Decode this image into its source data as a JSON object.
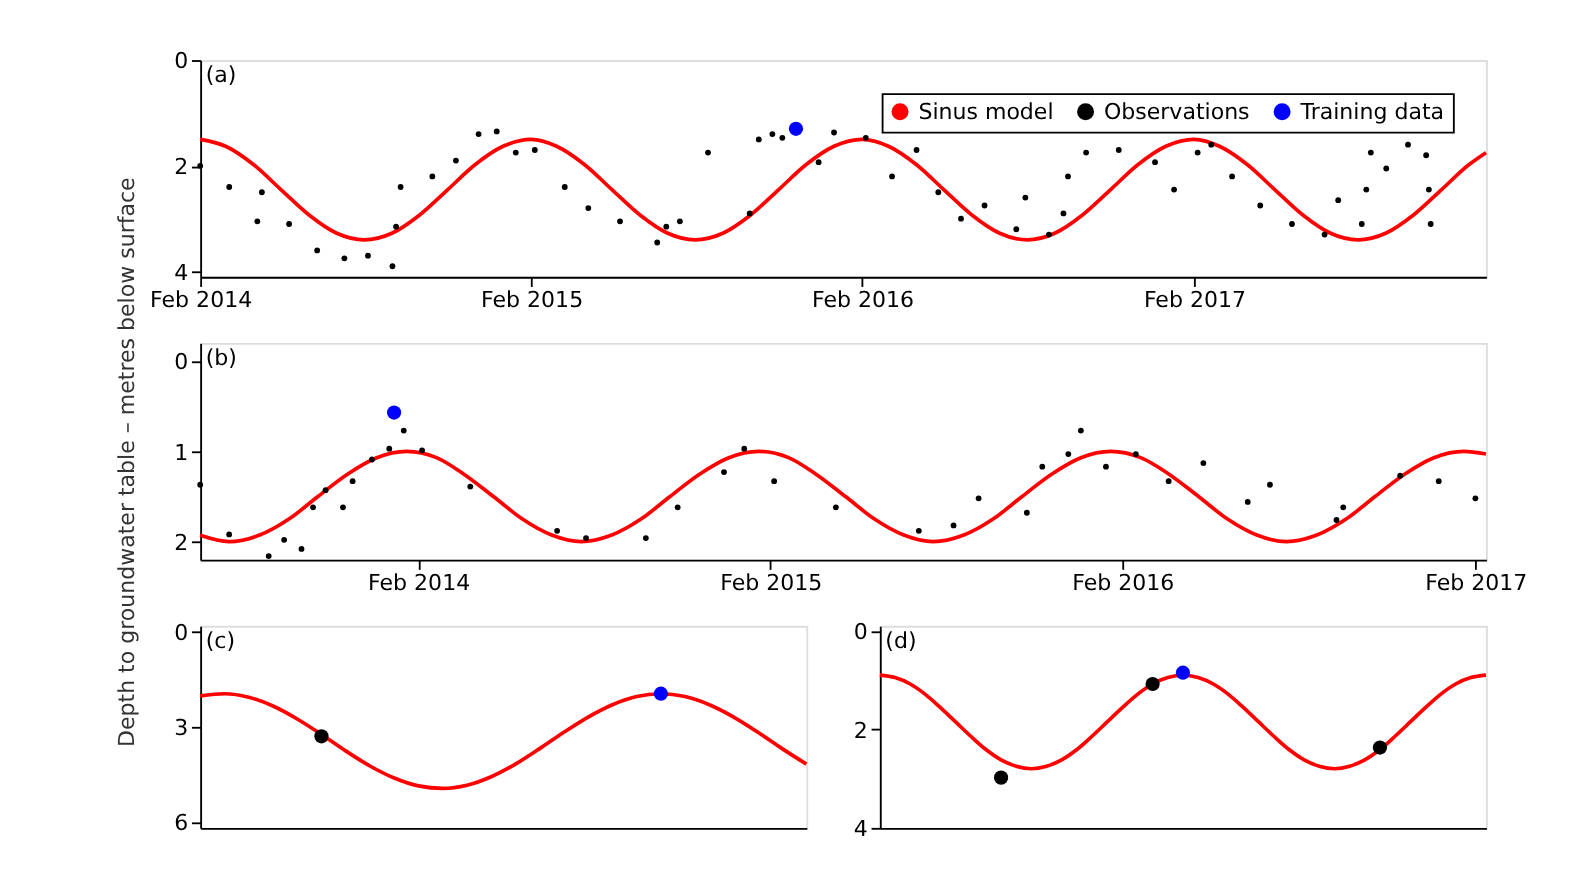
{
  "chart_data": [
    {
      "type": "line",
      "annotations": [
        "(a)"
      ],
      "legend": "top right",
      "line_style": "solid",
      "grid": false,
      "xlim": [
        "2014-02-01",
        "2017-12-20"
      ],
      "xticks": [
        {
          "value": "2014-02-01",
          "label": "Feb 2014"
        },
        {
          "value": "2015-02-01",
          "label": "Feb 2015"
        },
        {
          "value": "2016-02-01",
          "label": "Feb 2016"
        },
        {
          "value": "2017-02-01",
          "label": "Feb 2017"
        }
      ],
      "ylim": [
        4.1,
        0
      ],
      "yticks": [
        0,
        2,
        4
      ],
      "series": [
        {
          "name": "Sinus model",
          "type": "line",
          "color": "#ff0000",
          "x": [
            "2014-02-01",
            "2014-03-01",
            "2014-04-01",
            "2014-05-01",
            "2014-06-01",
            "2014-07-01",
            "2014-08-01",
            "2014-09-01",
            "2014-10-01",
            "2014-11-01",
            "2014-12-01",
            "2015-01-01",
            "2015-02-01",
            "2015-03-01",
            "2015-04-01",
            "2015-05-01",
            "2015-06-01",
            "2015-07-01",
            "2015-08-01",
            "2015-09-01",
            "2015-10-01",
            "2015-11-01",
            "2015-12-01",
            "2016-01-01",
            "2016-02-01",
            "2016-03-01",
            "2016-04-01",
            "2016-05-01",
            "2016-06-01",
            "2016-07-01",
            "2016-08-01",
            "2016-09-01",
            "2016-10-01",
            "2016-11-01",
            "2016-12-01",
            "2017-01-01",
            "2017-02-01",
            "2017-03-01",
            "2017-04-01",
            "2017-05-01",
            "2017-06-01",
            "2017-07-01",
            "2017-08-01",
            "2017-09-01",
            "2017-10-01",
            "2017-11-01",
            "2017-12-01",
            "2017-12-20"
          ],
          "values": [
            1.5,
            1.63,
            1.98,
            2.45,
            2.93,
            3.27,
            3.4,
            3.27,
            2.93,
            2.45,
            1.98,
            1.63,
            1.5,
            1.63,
            1.98,
            2.45,
            2.93,
            3.27,
            3.4,
            3.27,
            2.93,
            2.45,
            1.98,
            1.63,
            1.5,
            1.63,
            1.98,
            2.45,
            2.93,
            3.27,
            3.4,
            3.27,
            2.93,
            2.45,
            1.98,
            1.63,
            1.5,
            1.63,
            1.98,
            2.45,
            2.93,
            3.27,
            3.4,
            3.27,
            2.93,
            2.45,
            1.98,
            1.75
          ]
        },
        {
          "name": "Observations",
          "type": "scatter",
          "marker": "circle",
          "color": "#000000",
          "x": [
            "2014-02-01",
            "2014-03-05",
            "2014-04-05",
            "2014-04-10",
            "2014-05-10",
            "2014-06-10",
            "2014-07-10",
            "2014-08-05",
            "2014-09-01",
            "2014-09-05",
            "2014-09-10",
            "2014-10-15",
            "2014-11-10",
            "2014-12-05",
            "2014-12-25",
            "2015-01-15",
            "2015-02-05",
            "2015-03-10",
            "2015-04-05",
            "2015-05-10",
            "2015-06-20",
            "2015-06-30",
            "2015-07-15",
            "2015-08-15",
            "2015-09-30",
            "2015-10-10",
            "2015-10-25",
            "2015-11-05",
            "2015-12-15",
            "2016-01-01",
            "2016-02-05",
            "2016-03-05",
            "2016-04-01",
            "2016-04-25",
            "2016-05-20",
            "2016-06-15",
            "2016-07-20",
            "2016-07-30",
            "2016-08-25",
            "2016-09-10",
            "2016-09-15",
            "2016-10-05",
            "2016-11-10",
            "2016-12-20",
            "2017-01-10",
            "2017-02-05",
            "2017-02-20",
            "2017-03-15",
            "2017-04-15",
            "2017-05-20",
            "2017-06-25",
            "2017-07-10",
            "2017-08-05",
            "2017-08-10",
            "2017-08-15",
            "2017-09-01",
            "2017-09-25",
            "2017-10-15",
            "2017-10-18",
            "2017-10-20"
          ],
          "values": [
            2.0,
            2.4,
            3.05,
            2.5,
            3.1,
            3.6,
            3.75,
            3.7,
            3.9,
            3.15,
            2.4,
            2.2,
            1.9,
            1.4,
            1.35,
            1.75,
            1.7,
            2.4,
            2.8,
            3.05,
            3.45,
            3.15,
            3.05,
            1.75,
            2.9,
            1.5,
            1.4,
            1.47,
            1.93,
            1.37,
            1.47,
            2.2,
            1.7,
            2.5,
            3.0,
            2.75,
            3.2,
            2.6,
            3.3,
            2.9,
            2.2,
            1.75,
            1.7,
            1.93,
            2.45,
            1.75,
            1.6,
            2.2,
            2.75,
            3.1,
            3.3,
            2.65,
            3.1,
            2.45,
            1.75,
            2.05,
            1.6,
            1.8,
            2.45,
            3.1
          ]
        },
        {
          "name": "Training data",
          "type": "scatter",
          "marker": "circle",
          "color": "#0000ff",
          "x": [
            "2015-11-20"
          ],
          "values": [
            1.3
          ]
        }
      ]
    },
    {
      "type": "line",
      "annotations": [
        "(b)"
      ],
      "ylabel": "Depth to groundwater table – metres below surface",
      "line_style": "solid",
      "grid": false,
      "xlim": [
        "2013-06-20",
        "2017-02-12"
      ],
      "xticks": [
        {
          "value": "2014-02-01",
          "label": "Feb 2014"
        },
        {
          "value": "2015-02-01",
          "label": "Feb 2015"
        },
        {
          "value": "2016-02-01",
          "label": "Feb 2016"
        },
        {
          "value": "2017-02-01",
          "label": "Feb 2017"
        }
      ],
      "ylim": [
        2.2,
        -0.2
      ],
      "yticks": [
        0,
        1,
        2
      ],
      "series": [
        {
          "type": "line",
          "color": "#ff0000",
          "x": [
            "2013-06-20",
            "2013-07-20",
            "2013-08-20",
            "2013-09-20",
            "2013-10-20",
            "2013-11-20",
            "2013-12-20",
            "2014-01-20",
            "2014-02-20",
            "2014-03-20",
            "2014-04-20",
            "2014-05-20",
            "2014-06-20",
            "2014-07-20",
            "2014-08-20",
            "2014-09-20",
            "2014-10-20",
            "2014-11-20",
            "2014-12-20",
            "2015-01-20",
            "2015-02-20",
            "2015-03-20",
            "2015-04-20",
            "2015-05-20",
            "2015-06-20",
            "2015-07-20",
            "2015-08-20",
            "2015-09-20",
            "2015-10-20",
            "2015-11-20",
            "2015-12-20",
            "2016-01-20",
            "2016-02-20",
            "2016-03-20",
            "2016-04-20",
            "2016-05-20",
            "2016-06-20",
            "2016-07-20",
            "2016-08-20",
            "2016-09-20",
            "2016-10-20",
            "2016-11-20",
            "2016-12-20",
            "2017-01-20",
            "2017-02-12"
          ],
          "values": [
            1.93,
            2.0,
            1.93,
            1.75,
            1.5,
            1.25,
            1.07,
            1.0,
            1.07,
            1.25,
            1.5,
            1.75,
            1.93,
            2.0,
            1.93,
            1.75,
            1.5,
            1.25,
            1.07,
            1.0,
            1.07,
            1.25,
            1.5,
            1.75,
            1.93,
            2.0,
            1.93,
            1.75,
            1.5,
            1.25,
            1.07,
            1.0,
            1.07,
            1.25,
            1.5,
            1.75,
            1.93,
            2.0,
            1.93,
            1.75,
            1.5,
            1.25,
            1.07,
            1.0,
            1.03
          ]
        },
        {
          "type": "scatter",
          "marker": "circle",
          "color": "#000000",
          "x": [
            "2013-06-20",
            "2013-07-20",
            "2013-08-30",
            "2013-09-15",
            "2013-10-03",
            "2013-10-15",
            "2013-10-28",
            "2013-11-15",
            "2013-11-25",
            "2013-12-15",
            "2014-01-02",
            "2014-01-17",
            "2014-02-05",
            "2014-03-27",
            "2014-06-25",
            "2014-07-25",
            "2014-09-25",
            "2014-10-28",
            "2014-12-15",
            "2015-01-05",
            "2015-02-05",
            "2015-04-10",
            "2015-07-05",
            "2015-08-10",
            "2015-09-05",
            "2015-10-25",
            "2015-11-10",
            "2015-12-07",
            "2015-12-20",
            "2016-01-15",
            "2016-02-15",
            "2016-03-20",
            "2016-04-25",
            "2016-06-10",
            "2016-07-03",
            "2016-09-10",
            "2016-09-17",
            "2016-11-15",
            "2016-12-25",
            "2017-02-01"
          ],
          "values": [
            1.37,
            1.92,
            2.16,
            1.98,
            2.08,
            1.62,
            1.43,
            1.62,
            1.33,
            1.09,
            0.97,
            0.77,
            0.99,
            1.39,
            1.88,
            1.96,
            1.96,
            1.62,
            1.23,
            0.97,
            1.33,
            1.62,
            1.88,
            1.82,
            1.52,
            1.68,
            1.17,
            1.03,
            0.77,
            1.17,
            1.03,
            1.33,
            1.13,
            1.56,
            1.37,
            1.76,
            1.62,
            1.27,
            1.33,
            1.52
          ]
        },
        {
          "type": "scatter",
          "marker": "circle",
          "color": "#0000ff",
          "x": [
            "2014-01-07"
          ],
          "values": [
            0.57
          ]
        }
      ]
    },
    {
      "type": "line",
      "annotations": [
        "(c)"
      ],
      "line_style": "solid",
      "grid": false,
      "tick_labels": "y",
      "categories": [
        null,
        null,
        null,
        null,
        null,
        null,
        null,
        null,
        null,
        null,
        null,
        null,
        null,
        null,
        null,
        null,
        null,
        null,
        null,
        null,
        null,
        null,
        null,
        null,
        null,
        null
      ],
      "ylim": [
        6.2,
        -0.2
      ],
      "yticks": [
        0,
        3,
        6
      ],
      "series": [
        {
          "type": "line",
          "color": "#ff0000",
          "values": [
            2.02,
            1.95,
            2.06,
            2.34,
            2.75,
            3.24,
            3.76,
            4.24,
            4.62,
            4.87,
            4.95,
            4.85,
            4.58,
            4.18,
            3.69,
            3.17,
            2.69,
            2.3,
            2.04,
            1.95,
            2.04,
            2.3,
            2.69,
            3.17,
            3.69,
            4.18
          ]
        },
        {
          "type": "scatter",
          "marker": "circle",
          "color": "#000000",
          "values": [
            null,
            null,
            null,
            null,
            null,
            3.3,
            null,
            null,
            null,
            null,
            null,
            null,
            null,
            null,
            null,
            null,
            null,
            null,
            null,
            null,
            null,
            null,
            null,
            null,
            null,
            null
          ]
        },
        {
          "type": "scatter",
          "marker": "circle",
          "color": "#0000ff",
          "values": [
            null,
            null,
            null,
            null,
            null,
            null,
            null,
            null,
            null,
            null,
            null,
            null,
            null,
            null,
            null,
            null,
            null,
            null,
            null,
            1.95,
            null,
            null,
            null,
            null,
            null,
            null
          ]
        }
      ]
    },
    {
      "type": "line",
      "annotations": [
        "(d)"
      ],
      "line_style": "solid",
      "grid": false,
      "tick_labels": "y",
      "categories": [
        null,
        null,
        null,
        null,
        null,
        null,
        null,
        null,
        null,
        null,
        null,
        null,
        null,
        null,
        null,
        null,
        null,
        null,
        null,
        null,
        null,
        null,
        null,
        null,
        null,
        null,
        null,
        null,
        null,
        null,
        null,
        null,
        null,
        null,
        null,
        null,
        null,
        null,
        null,
        null,
        null
      ],
      "ylim": [
        4,
        -0.1
      ],
      "yticks": [
        0,
        2,
        4
      ],
      "series": [
        {
          "type": "line",
          "color": "#ff0000",
          "values": [
            0.9,
            0.95,
            1.08,
            1.29,
            1.56,
            1.85,
            2.14,
            2.41,
            2.62,
            2.75,
            2.8,
            2.75,
            2.62,
            2.41,
            2.14,
            1.85,
            1.56,
            1.29,
            1.08,
            0.95,
            0.9,
            0.95,
            1.08,
            1.29,
            1.56,
            1.85,
            2.14,
            2.41,
            2.62,
            2.75,
            2.8,
            2.75,
            2.62,
            2.41,
            2.14,
            1.85,
            1.56,
            1.29,
            1.08,
            0.95,
            0.9
          ]
        },
        {
          "type": "scatter",
          "marker": "circle",
          "color": "#000000",
          "values": [
            null,
            null,
            null,
            null,
            null,
            null,
            null,
            null,
            2.98,
            null,
            null,
            null,
            null,
            null,
            null,
            null,
            null,
            null,
            1.08,
            null,
            null,
            null,
            null,
            null,
            null,
            null,
            null,
            null,
            null,
            null,
            null,
            null,
            null,
            2.37,
            null,
            null,
            null,
            null,
            null,
            null,
            null
          ]
        },
        {
          "type": "scatter",
          "marker": "circle",
          "color": "#0000ff",
          "values": [
            null,
            null,
            null,
            null,
            null,
            null,
            null,
            null,
            null,
            null,
            null,
            null,
            null,
            null,
            null,
            null,
            null,
            null,
            null,
            null,
            0.85,
            null,
            null,
            null,
            null,
            null,
            null,
            null,
            null,
            null,
            null,
            null,
            null,
            null,
            null,
            null,
            null,
            null,
            null,
            null,
            null
          ]
        }
      ]
    }
  ]
}
